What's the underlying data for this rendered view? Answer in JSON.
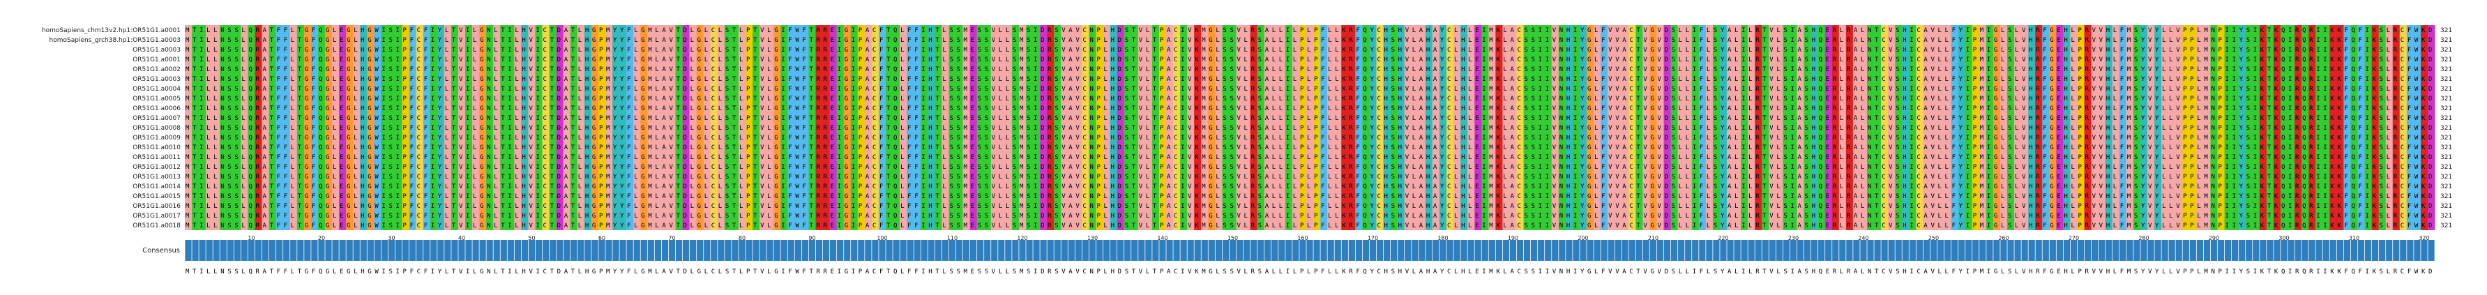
{
  "sequences": [
    {
      "name": "homoSapiens_chm13v2.hp1:OR51G1.a0001",
      "count": "321"
    },
    {
      "name": "homoSapiens_grch38.hp1:OR51G1.a0003",
      "count": "321"
    },
    {
      "name": "OR51G1.a0003",
      "count": "321"
    },
    {
      "name": "OR51G1.a0001",
      "count": "321"
    },
    {
      "name": "OR51G1.a0002",
      "count": "321"
    },
    {
      "name": "OR51G1.a0003",
      "count": "321"
    },
    {
      "name": "OR51G1.a0004",
      "count": "321"
    },
    {
      "name": "OR51G1.a0005",
      "count": "321"
    },
    {
      "name": "OR51G1.a0006",
      "count": "321"
    },
    {
      "name": "OR51G1.a0007",
      "count": "321"
    },
    {
      "name": "OR51G1.a0008",
      "count": "321"
    },
    {
      "name": "OR51G1.a0009",
      "count": "321"
    },
    {
      "name": "OR51G1.a0010",
      "count": "321"
    },
    {
      "name": "OR51G1.a0011",
      "count": "321"
    },
    {
      "name": "OR51G1.a0012",
      "count": "321"
    },
    {
      "name": "OR51G1.a0013",
      "count": "321"
    },
    {
      "name": "OR51G1.a0014",
      "count": "321"
    },
    {
      "name": "OR51G1.a0015",
      "count": "321"
    },
    {
      "name": "OR51G1.a0016",
      "count": "321"
    },
    {
      "name": "OR51G1.a0017",
      "count": "321"
    },
    {
      "name": "OR51G1.a0018",
      "count": "321"
    }
  ],
  "consensus_label": "Consensus",
  "consensus_sequence": "MTILLNSSLQRATFFLTGFQGLEGLHGWISIPFCFIYLTVILGNLTILHVICTDATLHGPMYYFLGMLAVTDLGLCLSTLPTVLGIFWFTRREIGIPACFTQLFFIHTLSSMESSVLLSMSIDRSVAVCNPLHDSTVLTPACIVKMGLSSVLRSALLILPLPFLLKRFQYCHSHVLAHAYCLHLEIMKLACSSIIVNHIYGLFVVACTVGVDSLLIFLSYALILRTVLSIASHQERLRALNTCVSHICAVLLFYIPMIGLSLVHRFGEHLPRVVHLFMSYVYLLVPPLMNPIIYSIKTKQIRQRIIKKFQFIKSLRCFWKD",
  "residue_colors": {
    "A": "#f5a8a8",
    "C": "#f5d64a",
    "D": "#cc33cc",
    "E": "#cc33cc",
    "F": "#55bbee",
    "G": "#ff9933",
    "H": "#33bbbb",
    "I": "#33cc33",
    "K": "#dd2222",
    "L": "#f5a8a8",
    "M": "#f5a8a8",
    "N": "#33cc33",
    "P": "#eecc00",
    "Q": "#33cc33",
    "R": "#dd2222",
    "S": "#33cc33",
    "T": "#33cc33",
    "V": "#f5a8a8",
    "W": "#55bbee",
    "Y": "#33bbbb"
  },
  "conservation_color": "#2f7fbf",
  "tick_labels": [
    "10",
    "20",
    "30",
    "40",
    "50",
    "60",
    "70",
    "80",
    "90",
    "100",
    "110",
    "120",
    "130",
    "140",
    "150",
    "160",
    "170",
    "180",
    "190",
    "200",
    "210",
    "220",
    "230",
    "240",
    "250",
    "260",
    "270",
    "280",
    "290",
    "300",
    "310",
    "320"
  ]
}
